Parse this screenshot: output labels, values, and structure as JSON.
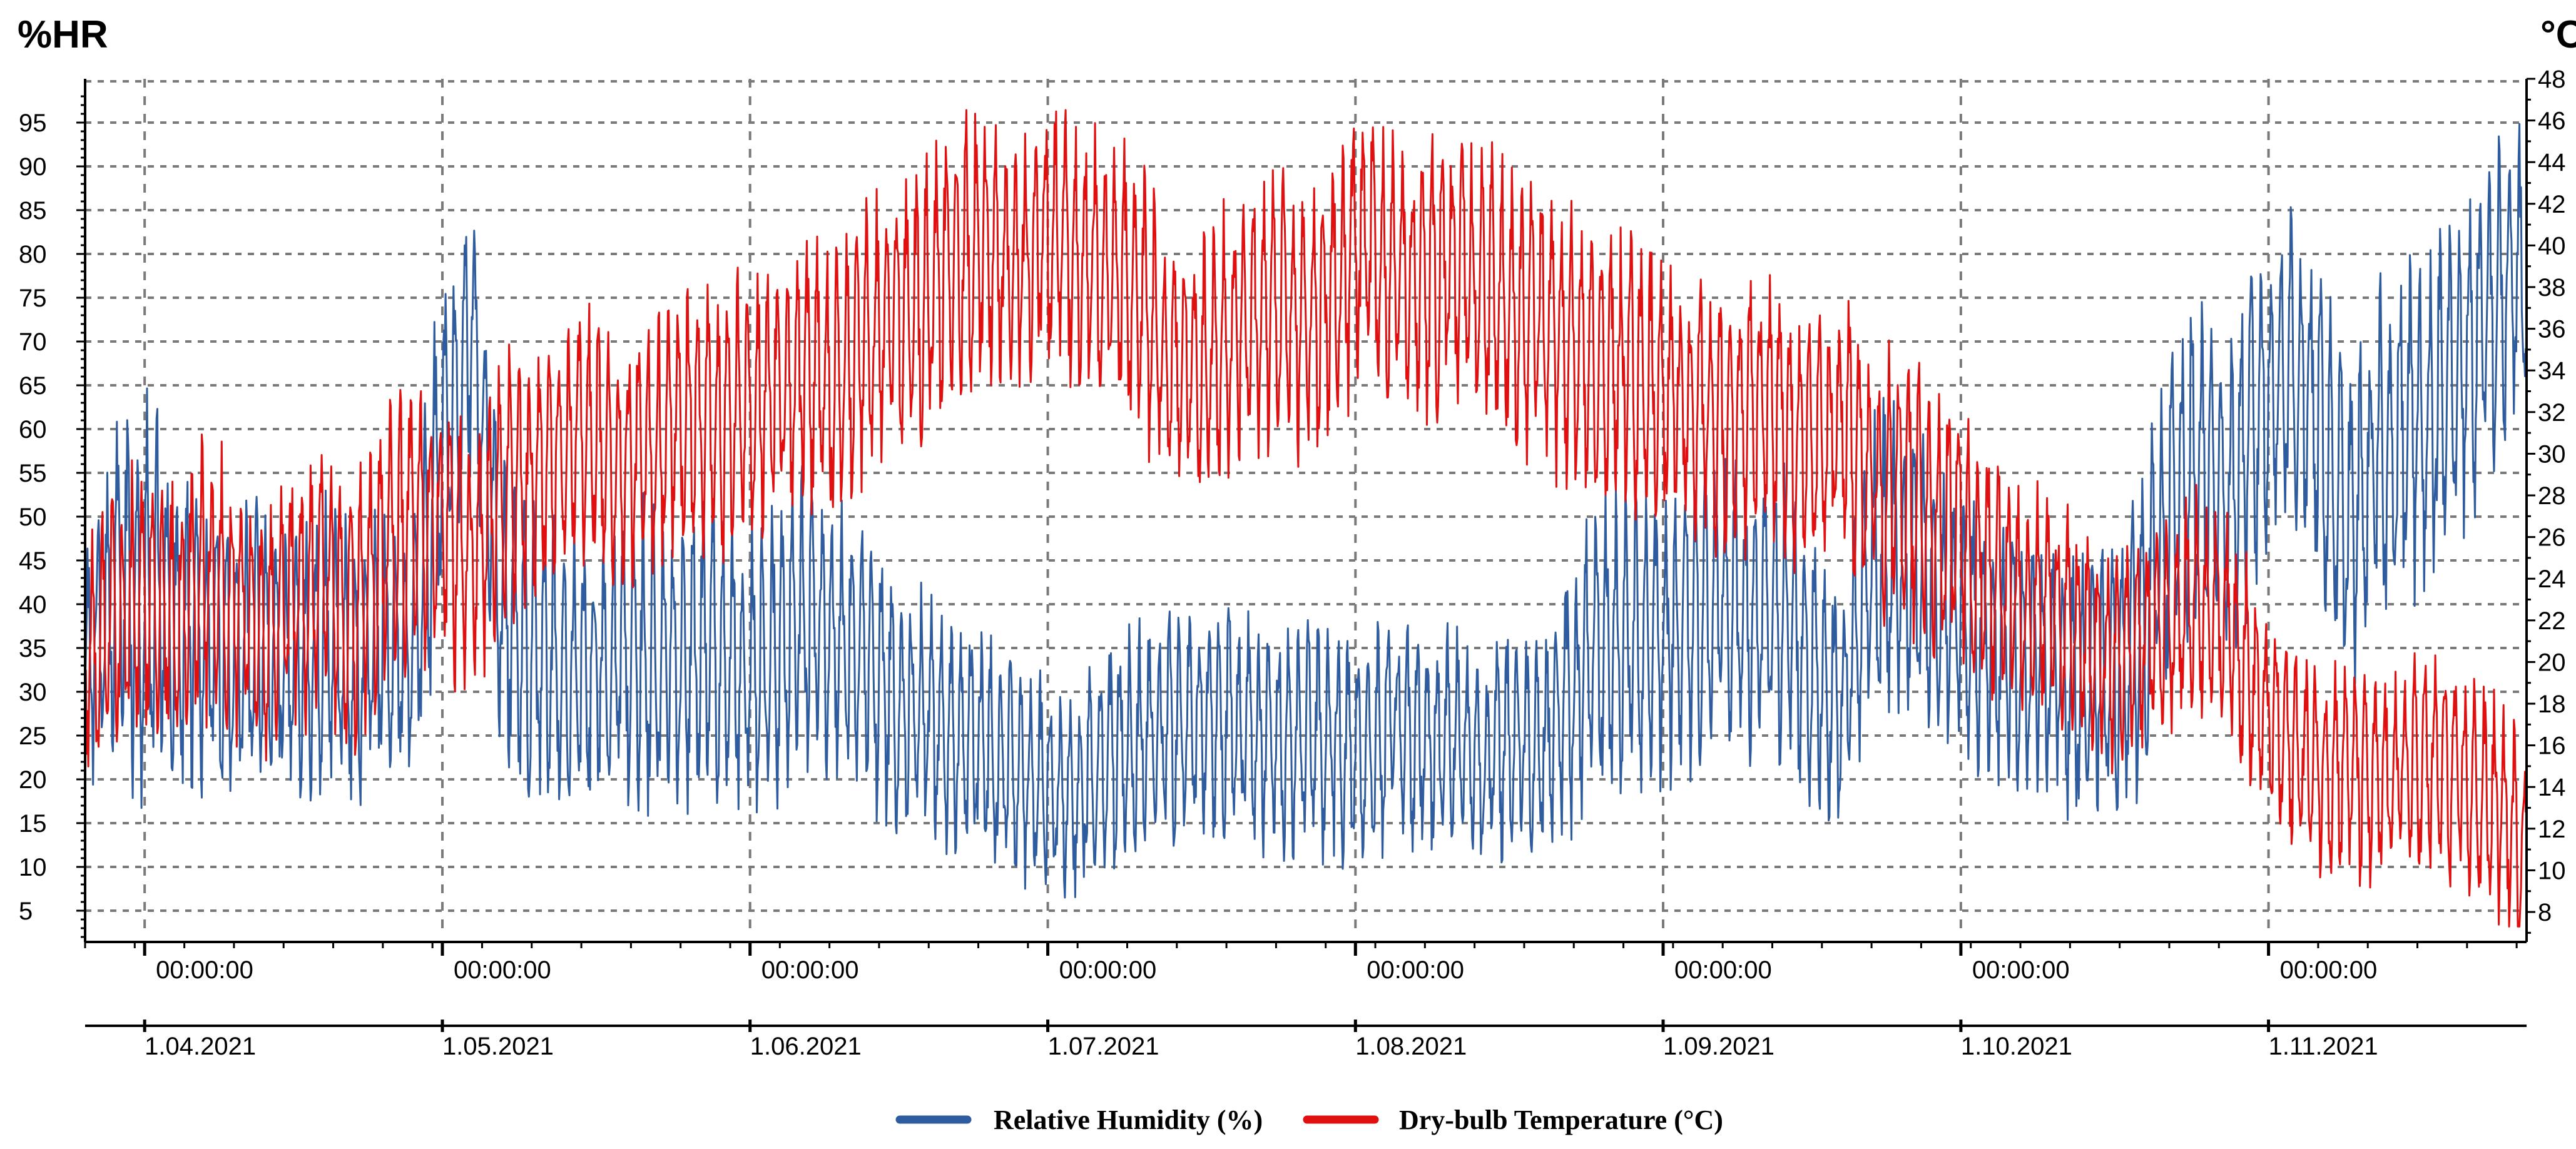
{
  "chart_data": {
    "type": "line",
    "title": "",
    "left_axis": {
      "label": "%HR",
      "ticks": [
        5,
        10,
        15,
        20,
        25,
        30,
        35,
        40,
        45,
        50,
        55,
        60,
        65,
        70,
        75,
        80,
        85,
        90,
        95
      ],
      "range": [
        2,
        100
      ]
    },
    "right_axis": {
      "label": "°C",
      "ticks": [
        8,
        10,
        12,
        14,
        16,
        18,
        20,
        22,
        24,
        26,
        28,
        30,
        32,
        34,
        36,
        38,
        40,
        42,
        44,
        46,
        48
      ],
      "range": [
        6.8,
        48
      ]
    },
    "x_axis": {
      "time_labels": [
        "00:00:00",
        "00:00:00",
        "00:00:00",
        "00:00:00",
        "00:00:00",
        "00:00:00",
        "00:00:00",
        "00:00:00"
      ],
      "date_labels": [
        "1.04.2021",
        "1.05.2021",
        "1.06.2021",
        "1.07.2021",
        "1.08.2021",
        "1.09.2021",
        "1.10.2021",
        "1.11.2021"
      ],
      "month_start_days": [
        6,
        36,
        67,
        97,
        128,
        159,
        189,
        220
      ],
      "range_days": [
        0,
        246
      ]
    },
    "grid": true,
    "legend_position": "bottom-center",
    "series": [
      {
        "name": "Relative Humidity (%)",
        "axis": "left",
        "color": "#2e5c9e",
        "x_days": [
          0,
          3,
          6,
          9,
          12,
          15,
          18,
          21,
          24,
          27,
          30,
          33,
          36,
          39,
          42,
          45,
          48,
          51,
          54,
          57,
          60,
          63,
          66,
          69,
          72,
          75,
          78,
          81,
          84,
          87,
          90,
          93,
          96,
          99,
          102,
          105,
          108,
          111,
          114,
          117,
          120,
          123,
          126,
          129,
          132,
          135,
          138,
          141,
          144,
          147,
          150,
          153,
          156,
          159,
          162,
          165,
          168,
          171,
          174,
          177,
          180,
          183,
          186,
          189,
          192,
          195,
          198,
          201,
          204,
          207,
          210,
          213,
          216,
          219,
          222,
          225,
          228,
          231,
          234,
          237,
          240,
          243,
          246
        ],
        "mean": [
          32,
          42,
          40,
          38,
          35,
          34,
          36,
          33,
          35,
          32,
          36,
          34,
          58,
          72,
          40,
          34,
          33,
          32,
          35,
          34,
          33,
          35,
          32,
          34,
          38,
          36,
          35,
          30,
          27,
          25,
          24,
          22,
          20,
          17,
          22,
          24,
          25,
          26,
          27,
          26,
          24,
          25,
          24,
          23,
          26,
          24,
          25,
          22,
          25,
          24,
          30,
          35,
          36,
          37,
          38,
          40,
          38,
          39,
          33,
          28,
          45,
          44,
          41,
          38,
          36,
          34,
          33,
          30,
          31,
          36,
          50,
          56,
          52,
          62,
          68,
          60,
          48,
          56,
          60,
          62,
          68,
          74,
          78
        ],
        "amplitude": [
          12,
          14,
          18,
          14,
          13,
          13,
          12,
          12,
          13,
          12,
          12,
          12,
          16,
          12,
          13,
          13,
          12,
          12,
          13,
          13,
          12,
          13,
          12,
          13,
          13,
          12,
          12,
          12,
          11,
          10,
          10,
          10,
          9,
          8,
          10,
          10,
          10,
          10,
          11,
          10,
          10,
          10,
          10,
          10,
          10,
          10,
          10,
          9,
          10,
          10,
          12,
          13,
          13,
          13,
          13,
          13,
          13,
          13,
          12,
          11,
          14,
          14,
          13,
          12,
          12,
          11,
          11,
          11,
          11,
          13,
          14,
          15,
          14,
          15,
          14,
          14,
          14,
          15,
          15,
          15,
          15,
          14,
          14
        ]
      },
      {
        "name": "Dry-bulb Temperature (°C)",
        "axis": "right",
        "color": "#e01010",
        "x_days": [
          0,
          3,
          6,
          9,
          12,
          15,
          18,
          21,
          24,
          27,
          30,
          33,
          36,
          39,
          42,
          45,
          48,
          51,
          54,
          57,
          60,
          63,
          66,
          69,
          72,
          75,
          78,
          81,
          84,
          87,
          90,
          93,
          96,
          99,
          102,
          105,
          108,
          111,
          114,
          117,
          120,
          123,
          126,
          129,
          132,
          135,
          138,
          141,
          144,
          147,
          150,
          153,
          156,
          159,
          162,
          165,
          168,
          171,
          174,
          177,
          180,
          183,
          186,
          189,
          192,
          195,
          198,
          201,
          204,
          207,
          210,
          213,
          216,
          219,
          222,
          225,
          228,
          231,
          234,
          237,
          240,
          243,
          246
        ],
        "mean": [
          20,
          22,
          23,
          22,
          24,
          23,
          21,
          23,
          24,
          22,
          25,
          27,
          26,
          25,
          28,
          29,
          30,
          31,
          29,
          30,
          32,
          31,
          32,
          33,
          34,
          33,
          35,
          36,
          37,
          39,
          40,
          39,
          40,
          40,
          39,
          38,
          36,
          34,
          35,
          36,
          37,
          36,
          38,
          40,
          39,
          38,
          39,
          38,
          37,
          36,
          35,
          34,
          34,
          33,
          32,
          31,
          32,
          32,
          30,
          32,
          29,
          28,
          27,
          26,
          24,
          23,
          23,
          21,
          20,
          21,
          22,
          23,
          22,
          18,
          16,
          15,
          15,
          14,
          15,
          15,
          14,
          13,
          11
        ],
        "amplitude": [
          4,
          5,
          5,
          5,
          5,
          5,
          4,
          5,
          5,
          5,
          5,
          5,
          5,
          5,
          5,
          5,
          5,
          5,
          5,
          5,
          5,
          5,
          5,
          5,
          5,
          5,
          5,
          5,
          5,
          5,
          5,
          5,
          5,
          5,
          5,
          5,
          5,
          4,
          5,
          5,
          5,
          5,
          5,
          5,
          5,
          5,
          5,
          5,
          5,
          5,
          5,
          5,
          5,
          5,
          5,
          5,
          5,
          5,
          5,
          5,
          5,
          5,
          5,
          5,
          5,
          4,
          4,
          4,
          4,
          4,
          4,
          4,
          4,
          4,
          4,
          4,
          4,
          4,
          4,
          4,
          4,
          4,
          4
        ]
      }
    ]
  },
  "legend": {
    "items": [
      {
        "label": "Relative Humidity (%)",
        "color": "#2e5c9e"
      },
      {
        "label": "Dry-bulb Temperature (°C)",
        "color": "#e01010"
      }
    ]
  }
}
